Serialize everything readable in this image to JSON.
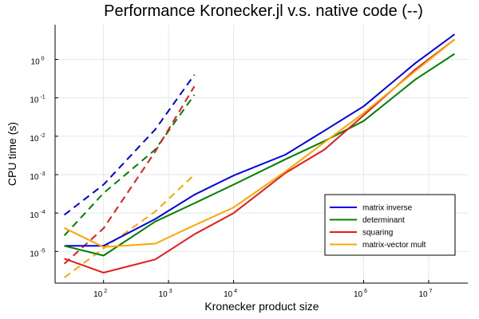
{
  "chart_data": {
    "type": "line",
    "title": "Performance Kronecker.jl v.s. native code (--)",
    "xlabel": "Kronecker product size",
    "ylabel": "CPU time (s)",
    "xscale": "log",
    "yscale": "log",
    "xlim": [
      18,
      40000000
    ],
    "ylim": [
      1.5e-06,
      8
    ],
    "xticks": [
      {
        "value": 100,
        "base": "10",
        "exp": "2"
      },
      {
        "value": 1000,
        "base": "10",
        "exp": "3"
      },
      {
        "value": 10000,
        "base": "10",
        "exp": "4"
      },
      {
        "value": 1000000,
        "base": "10",
        "exp": "6"
      },
      {
        "value": 10000000,
        "base": "10",
        "exp": "7"
      }
    ],
    "yticks": [
      {
        "value": 1e-05,
        "base": "10",
        "exp": "-5"
      },
      {
        "value": 0.0001,
        "base": "10",
        "exp": "-4"
      },
      {
        "value": 0.001,
        "base": "10",
        "exp": "-3"
      },
      {
        "value": 0.01,
        "base": "10",
        "exp": "-2"
      },
      {
        "value": 0.1,
        "base": "10",
        "exp": "-1"
      },
      {
        "value": 1,
        "base": "10",
        "exp": "0"
      }
    ],
    "grid": true,
    "legend_position": "bottom-right",
    "series": [
      {
        "name": "matrix inverse",
        "color": "#0000e6",
        "style": "solid",
        "x": [
          25,
          100,
          625,
          2500,
          10000,
          62500,
          250000,
          1000000,
          6250000,
          25000000
        ],
        "y": [
          1.4e-05,
          1.4e-05,
          7e-05,
          0.0003,
          0.00095,
          0.0033,
          0.014,
          0.06,
          0.8,
          4.5
        ]
      },
      {
        "name": "determinant",
        "color": "#008000",
        "style": "solid",
        "x": [
          25,
          100,
          625,
          2500,
          10000,
          62500,
          250000,
          1000000,
          6250000,
          25000000
        ],
        "y": [
          1.4e-05,
          7.8e-06,
          6e-05,
          0.00018,
          0.00055,
          0.0025,
          0.0075,
          0.025,
          0.3,
          1.4
        ]
      },
      {
        "name": "squaring",
        "color": "#e61a1a",
        "style": "solid",
        "x": [
          25,
          100,
          625,
          2500,
          10000,
          62500,
          250000,
          1000000,
          6250000,
          25000000
        ],
        "y": [
          6.5e-06,
          2.8e-06,
          6.2e-06,
          2.8e-05,
          0.0001,
          0.0011,
          0.0045,
          0.035,
          0.55,
          3.3
        ]
      },
      {
        "name": "matrix-vector mult",
        "color": "#ffa500",
        "style": "solid",
        "x": [
          25,
          100,
          625,
          2500,
          10000,
          62500,
          250000,
          1000000,
          6250000,
          25000000
        ],
        "y": [
          4.1e-05,
          1.3e-05,
          1.6e-05,
          4.8e-05,
          0.00014,
          0.0012,
          0.007,
          0.04,
          0.5,
          3.3
        ]
      },
      {
        "color": "#0000e6",
        "style": "dashed",
        "x": [
          25,
          100,
          625,
          2500
        ],
        "y": [
          9e-05,
          0.00055,
          0.015,
          0.4
        ]
      },
      {
        "color": "#008000",
        "style": "dashed",
        "x": [
          25,
          100,
          625,
          2500
        ],
        "y": [
          2.6e-05,
          0.00033,
          0.0045,
          0.12
        ]
      },
      {
        "color": "#e61a1a",
        "style": "dashed",
        "x": [
          25,
          100,
          625,
          2500
        ],
        "y": [
          4.8e-06,
          4e-05,
          0.004,
          0.2
        ]
      },
      {
        "color": "#ffa500",
        "style": "dashed",
        "x": [
          25,
          100,
          625,
          2500
        ],
        "y": [
          2.1e-06,
          1.2e-05,
          0.00011,
          0.001
        ]
      }
    ]
  }
}
